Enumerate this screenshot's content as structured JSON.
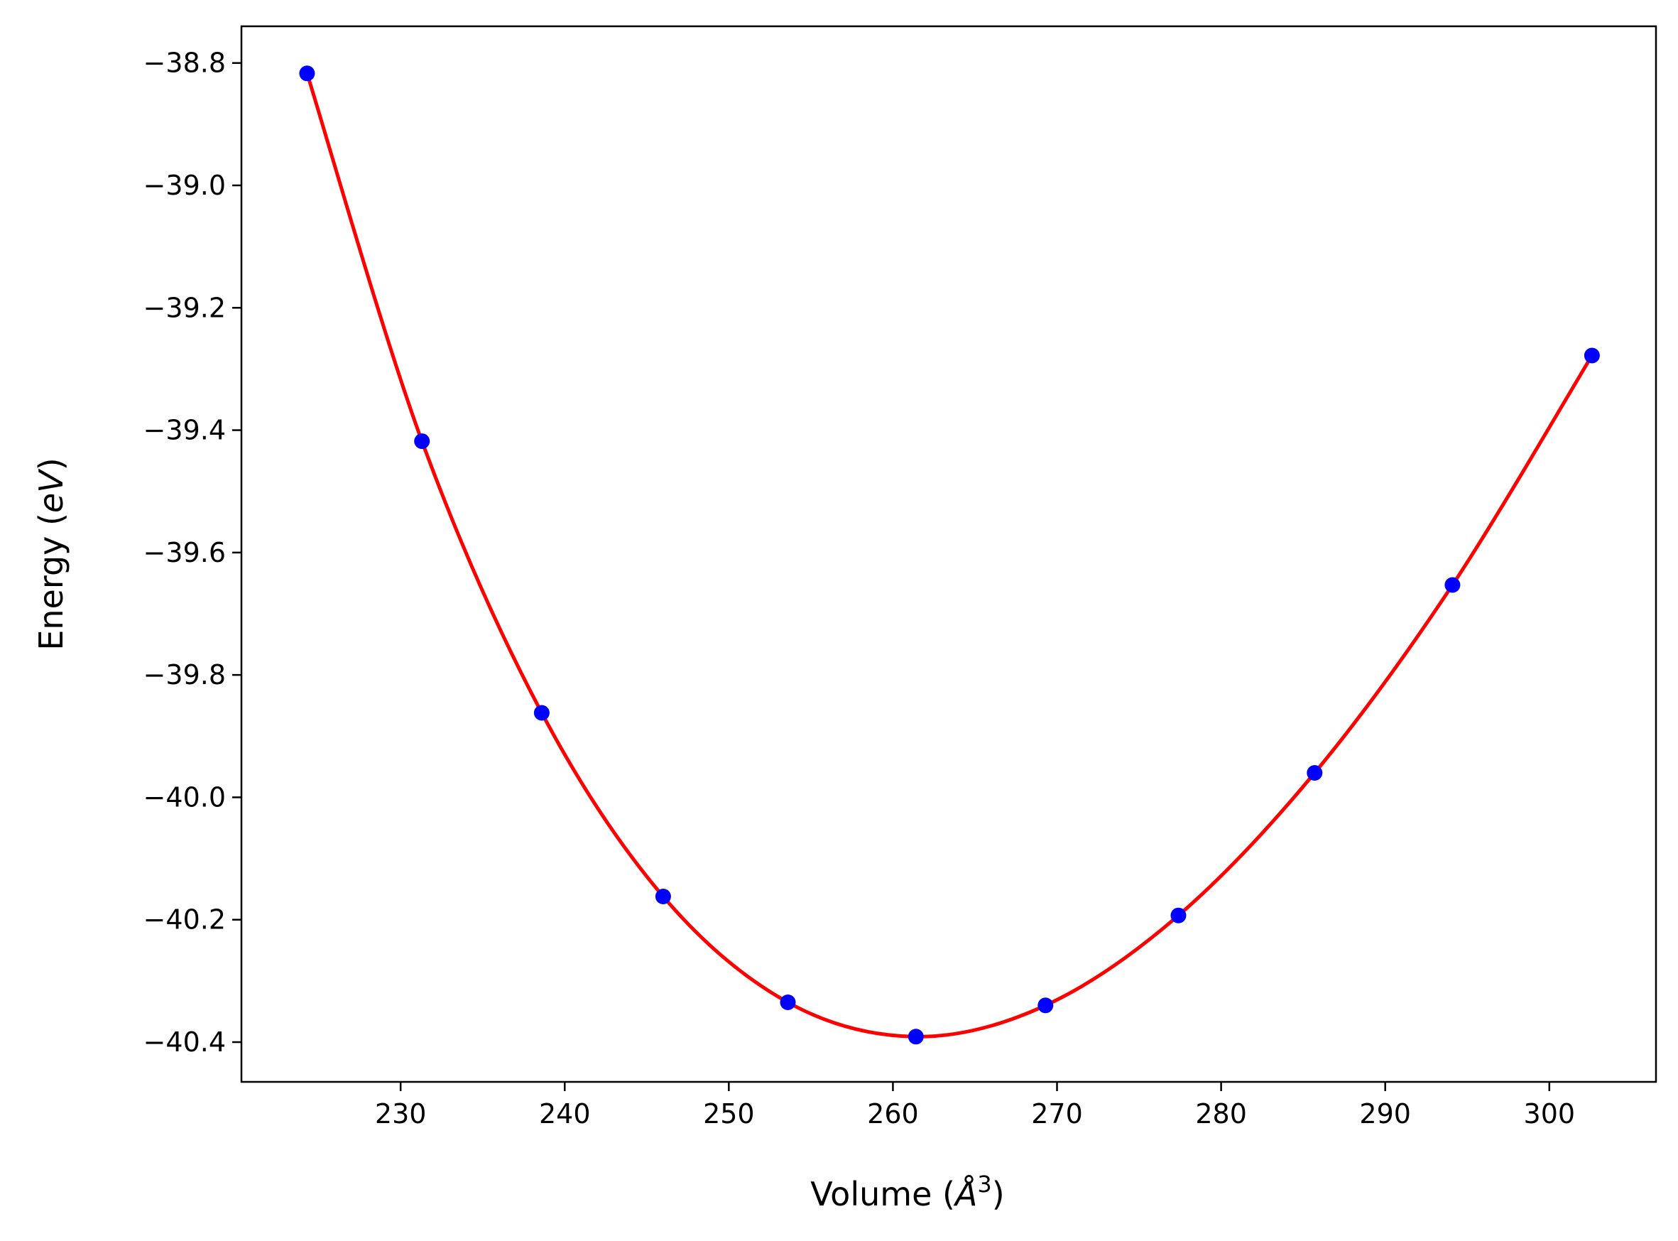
{
  "chart_data": {
    "type": "line",
    "title": "",
    "xlabel": "Volume (Å³)",
    "xlabel_parts": {
      "prefix": "Volume (",
      "symbol": "Å",
      "sup": "3",
      "suffix": ")"
    },
    "ylabel": "Energy (eV)",
    "ylabel_parts": {
      "prefix": "Energy (",
      "symbol": "eV",
      "suffix": ")"
    },
    "xlim": [
      220.3,
      306.5
    ],
    "ylim": [
      -40.465,
      -38.74
    ],
    "xticks": [
      230,
      240,
      250,
      260,
      270,
      280,
      290,
      300
    ],
    "xtick_labels": [
      "230",
      "240",
      "250",
      "260",
      "270",
      "280",
      "290",
      "300"
    ],
    "yticks": [
      -38.8,
      -39.0,
      -39.2,
      -39.4,
      -39.6,
      -39.8,
      -40.0,
      -40.2,
      -40.4
    ],
    "ytick_labels": [
      "−38.8",
      "−39.0",
      "−39.2",
      "−39.4",
      "−39.6",
      "−39.8",
      "−40.0",
      "−40.2",
      "−40.4"
    ],
    "grid": false,
    "series": [
      {
        "kind": "scatter",
        "color": "#0000ff",
        "x": [
          224.3,
          231.3,
          238.6,
          246.0,
          253.6,
          261.4,
          269.3,
          277.4,
          285.7,
          294.1,
          302.6
        ],
        "y": [
          -38.817,
          -39.418,
          -39.862,
          -40.162,
          -40.335,
          -40.391,
          -40.34,
          -40.193,
          -39.96,
          -39.653,
          -39.278
        ]
      },
      {
        "kind": "line",
        "color": "#ff0000",
        "fit": "birch-murnaghan",
        "E0": -40.391,
        "V0": 262.3,
        "B0": 0.1,
        "B0_prime": 4.0,
        "x_range": [
          224.3,
          302.6
        ]
      }
    ]
  }
}
